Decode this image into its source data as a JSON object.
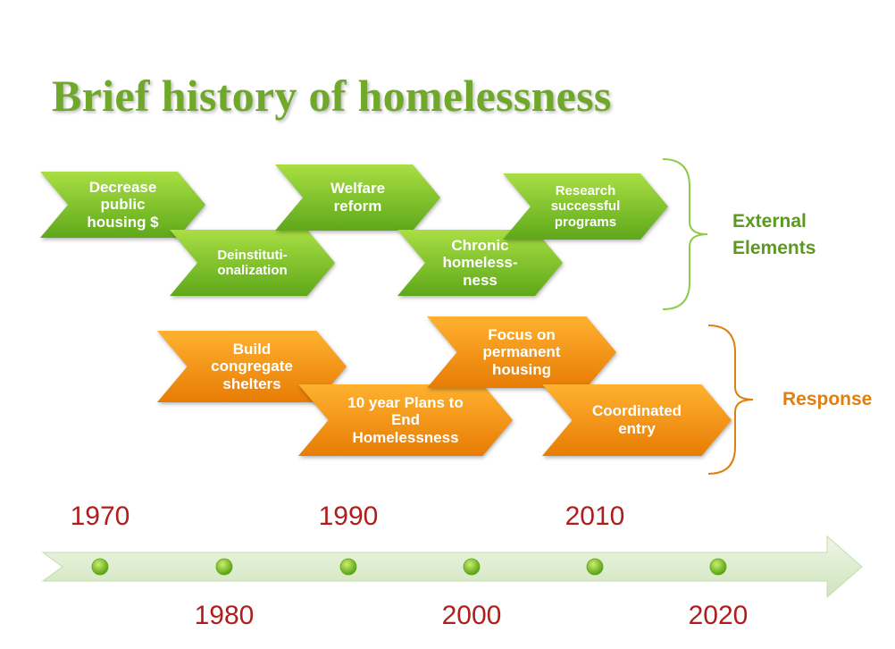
{
  "title": "Brief history of homelessness",
  "colors": {
    "title": "#6fa82a",
    "external": "#5c9a1e",
    "response": "#e07f10",
    "year": "#b01d1d",
    "timeline_arrow": "#dcebcd",
    "timeline_dot": "#6fbf1e"
  },
  "external": {
    "label": "External\nElements",
    "items": [
      {
        "label": "Decrease\npublic\nhousing $"
      },
      {
        "label": "Deinstituti-\nonalization"
      },
      {
        "label": "Welfare\nreform"
      },
      {
        "label": "Chronic\nhomeless-\nness"
      },
      {
        "label": "Research\nsuccessful\nprograms"
      }
    ]
  },
  "response": {
    "label": "Response",
    "items": [
      {
        "label": "Build\ncongregate\nshelters"
      },
      {
        "label": "10 year Plans to\nEnd\nHomelessness"
      },
      {
        "label": "Focus on\npermanent\nhousing"
      },
      {
        "label": "Coordinated\nentry"
      }
    ]
  },
  "timeline": {
    "years_top": [
      "1970",
      "1990",
      "2010"
    ],
    "years_bottom": [
      "1980",
      "2000",
      "2020"
    ]
  }
}
